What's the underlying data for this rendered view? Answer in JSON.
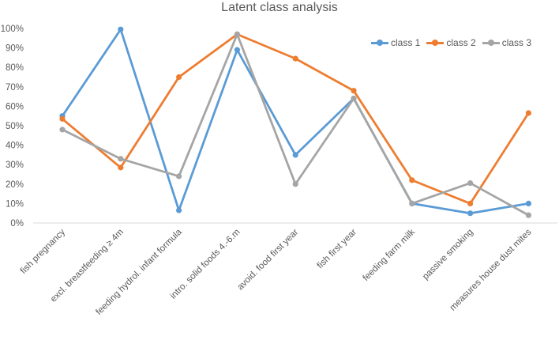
{
  "chart_data": {
    "type": "line",
    "title": "Latent class analysis",
    "xlabel": "",
    "ylabel": "",
    "ylim": [
      0,
      100
    ],
    "yticks": [
      "0%",
      "10%",
      "20%",
      "30%",
      "40%",
      "50%",
      "60%",
      "70%",
      "80%",
      "90%",
      "100%"
    ],
    "grid": false,
    "legend_position": "top-right",
    "categories": [
      "fish pregnancy",
      "excl. breastfeeding ≥ 4m",
      "feeding hydrol. infant formula",
      "intro. solid foods 4.-6.m",
      "avoid. food first year",
      "fish first year",
      "feeding farm milk",
      "passive smoking",
      "measures house dust mites"
    ],
    "series": [
      {
        "name": "class 1",
        "color": "#5B9BD5",
        "values": [
          55,
          99.5,
          6.5,
          89,
          35,
          64,
          10,
          5,
          10
        ]
      },
      {
        "name": "class 2",
        "color": "#ED7D31",
        "values": [
          53.5,
          28.5,
          75,
          97,
          84.5,
          68,
          22,
          10,
          56.5
        ]
      },
      {
        "name": "class 3",
        "color": "#A5A5A5",
        "values": [
          48,
          33,
          24,
          97,
          20,
          64,
          10,
          20.5,
          4
        ]
      }
    ]
  }
}
